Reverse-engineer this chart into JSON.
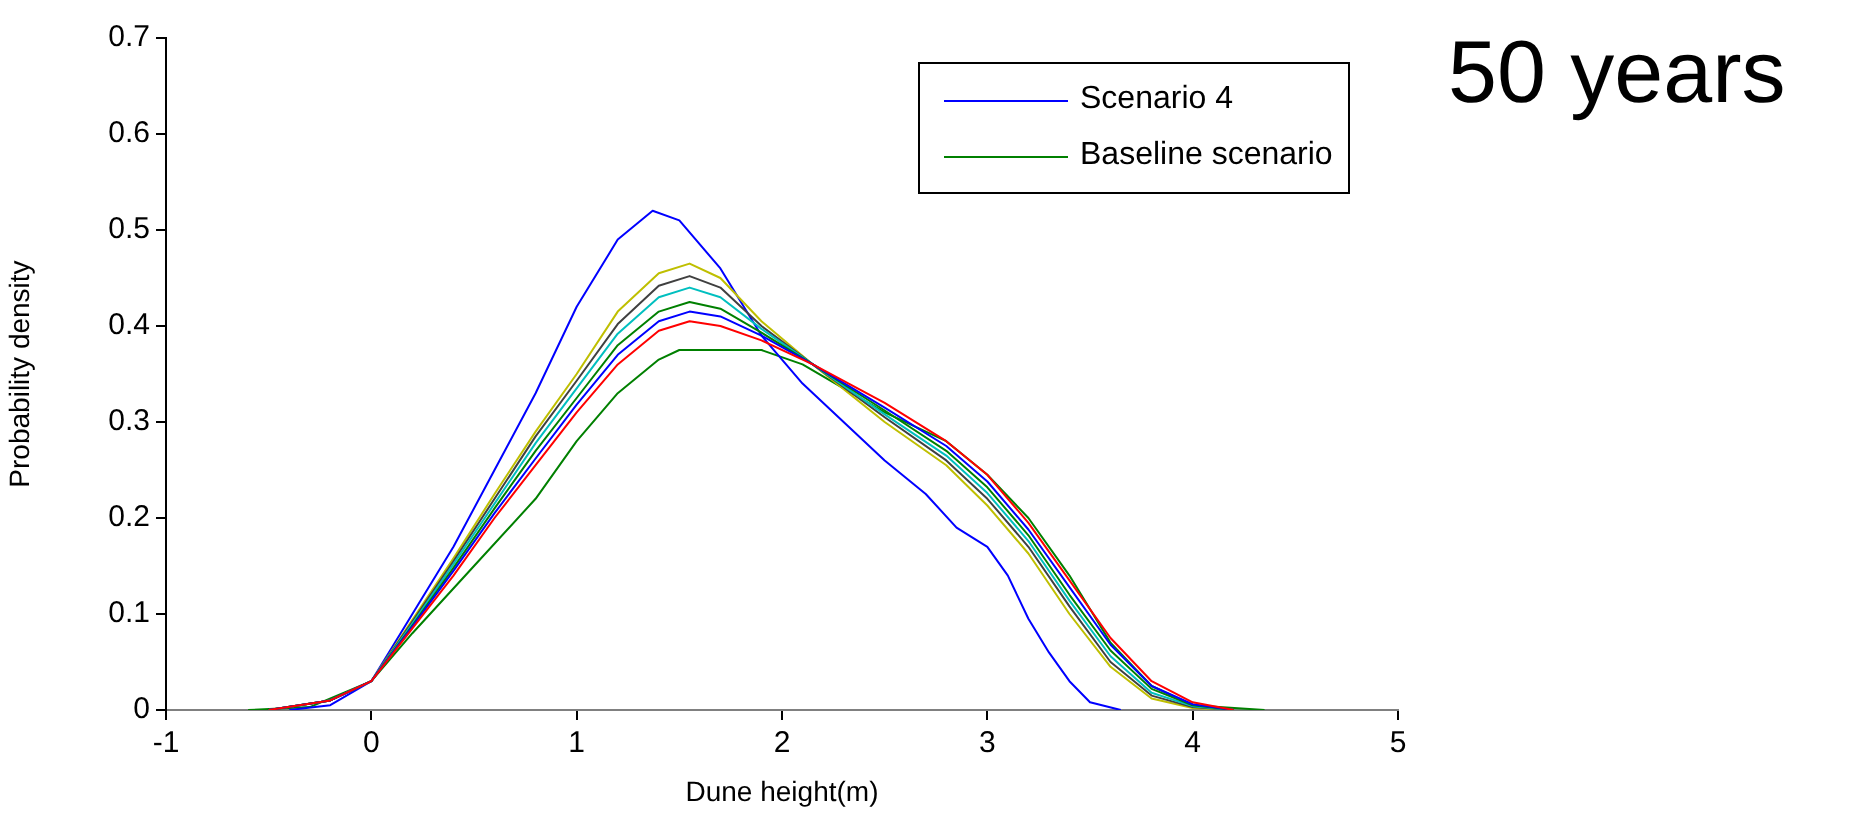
{
  "chart_data": {
    "type": "line",
    "title": "50 years",
    "xlabel": "Dune height(m)",
    "ylabel": "Probability density",
    "xlim": [
      -1,
      5
    ],
    "xticks": [
      -1,
      0,
      1,
      2,
      3,
      4,
      5
    ],
    "ylim": [
      0,
      0.7
    ],
    "yticks": [
      0,
      0.1,
      0.2,
      0.3,
      0.4,
      0.5,
      0.6,
      0.7
    ],
    "grid": false,
    "legend": "top right",
    "marker": "none",
    "line_style": "solid",
    "x": [
      -0.5,
      -0.2,
      0,
      0.2,
      0.4,
      0.6,
      0.8,
      1.0,
      1.2,
      1.4,
      1.55,
      1.7,
      1.9,
      2.15,
      2.5,
      2.8,
      3.0,
      3.2,
      3.4,
      3.6,
      3.8,
      4.0,
      4.2
    ],
    "series": [
      {
        "color": "#ff0000",
        "values": [
          0,
          0.01,
          0.03,
          0.085,
          0.14,
          0.2,
          0.255,
          0.31,
          0.36,
          0.395,
          0.405,
          0.4,
          0.385,
          0.36,
          0.32,
          0.28,
          0.245,
          0.195,
          0.135,
          0.075,
          0.03,
          0.008,
          0
        ]
      },
      {
        "color": "#0000ff",
        "values": [
          0,
          0.01,
          0.03,
          0.087,
          0.145,
          0.205,
          0.262,
          0.318,
          0.37,
          0.405,
          0.415,
          0.41,
          0.39,
          0.36,
          0.315,
          0.275,
          0.238,
          0.188,
          0.128,
          0.068,
          0.025,
          0.006,
          0
        ]
      },
      {
        "color": "#008000",
        "values": [
          0,
          0.01,
          0.03,
          0.088,
          0.148,
          0.21,
          0.27,
          0.325,
          0.38,
          0.415,
          0.425,
          0.418,
          0.393,
          0.36,
          0.312,
          0.27,
          0.232,
          0.182,
          0.12,
          0.062,
          0.022,
          0.005,
          0
        ]
      },
      {
        "color": "#00bfbf",
        "values": [
          0,
          0.01,
          0.03,
          0.09,
          0.152,
          0.215,
          0.278,
          0.335,
          0.392,
          0.43,
          0.44,
          0.43,
          0.397,
          0.36,
          0.308,
          0.265,
          0.226,
          0.176,
          0.114,
          0.056,
          0.018,
          0.004,
          0
        ]
      },
      {
        "color": "#404040",
        "values": [
          0,
          0.01,
          0.03,
          0.092,
          0.155,
          0.22,
          0.285,
          0.343,
          0.402,
          0.442,
          0.452,
          0.44,
          0.4,
          0.36,
          0.305,
          0.26,
          0.22,
          0.17,
          0.108,
          0.05,
          0.015,
          0.003,
          0
        ]
      },
      {
        "color": "#bfbf00",
        "values": [
          0,
          0.01,
          0.03,
          0.094,
          0.158,
          0.225,
          0.29,
          0.35,
          0.415,
          0.455,
          0.465,
          0.45,
          0.405,
          0.36,
          0.3,
          0.255,
          0.213,
          0.163,
          0.1,
          0.045,
          0.012,
          0.002,
          0
        ]
      },
      {
        "name": "Scenario 4",
        "color": "#0000ff",
        "x": [
          -0.4,
          -0.2,
          0,
          0.2,
          0.4,
          0.6,
          0.8,
          1.0,
          1.2,
          1.37,
          1.5,
          1.7,
          1.9,
          2.1,
          2.3,
          2.5,
          2.7,
          2.85,
          3.0,
          3.1,
          3.2,
          3.3,
          3.4,
          3.5,
          3.65
        ],
        "values": [
          0,
          0.005,
          0.03,
          0.1,
          0.17,
          0.25,
          0.33,
          0.42,
          0.49,
          0.52,
          0.51,
          0.46,
          0.39,
          0.34,
          0.3,
          0.26,
          0.225,
          0.19,
          0.17,
          0.14,
          0.095,
          0.06,
          0.03,
          0.008,
          0
        ]
      },
      {
        "name": "Baseline scenario",
        "color": "#008000",
        "x": [
          -0.6,
          -0.3,
          0,
          0.2,
          0.5,
          0.8,
          1.0,
          1.2,
          1.4,
          1.5,
          1.9,
          2.1,
          2.5,
          2.8,
          3.0,
          3.2,
          3.4,
          3.6,
          3.8,
          4.0,
          4.35
        ],
        "values": [
          0,
          0.003,
          0.03,
          0.08,
          0.15,
          0.22,
          0.28,
          0.33,
          0.365,
          0.375,
          0.375,
          0.36,
          0.31,
          0.28,
          0.245,
          0.2,
          0.14,
          0.07,
          0.025,
          0.005,
          0
        ]
      }
    ]
  }
}
